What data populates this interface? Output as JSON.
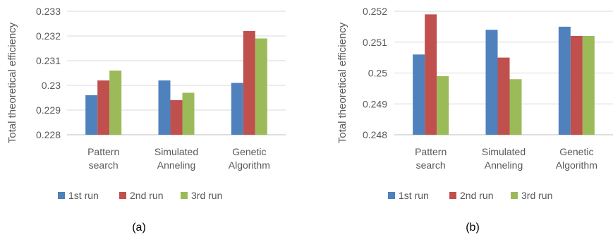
{
  "colors": {
    "series": [
      "#4f81bd",
      "#c0504d",
      "#9bbb59"
    ],
    "grid": "#d9d9d9",
    "axis": "#bfbfbf"
  },
  "chart_data": [
    {
      "type": "bar",
      "panel_label": "(a)",
      "ylabel": "Total theoretical efficiency",
      "categories": [
        [
          "Pattern",
          "search"
        ],
        [
          "Simulated",
          "Anneling"
        ],
        [
          "Genetic",
          "Algorithm"
        ]
      ],
      "ylim": [
        0.228,
        0.233
      ],
      "yticks": [
        "0.228",
        "0.229",
        "0.23",
        "0.231",
        "0.232",
        "0.233"
      ],
      "grid": true,
      "legend_position": "bottom",
      "series": [
        {
          "name": "1st run",
          "values": [
            0.2296,
            0.2302,
            0.2301
          ]
        },
        {
          "name": "2nd run",
          "values": [
            0.2302,
            0.2294,
            0.2322
          ]
        },
        {
          "name": "3rd run",
          "values": [
            0.2306,
            0.2297,
            0.2319
          ]
        }
      ]
    },
    {
      "type": "bar",
      "panel_label": "(b)",
      "ylabel": "Total theoretical efficiency",
      "categories": [
        [
          "Pattern",
          "search"
        ],
        [
          "Simulated",
          "Anneling"
        ],
        [
          "Genetic",
          "Algorithm"
        ]
      ],
      "ylim": [
        0.248,
        0.252
      ],
      "yticks": [
        "0.248",
        "0.249",
        "0.25",
        "0.251",
        "0.252"
      ],
      "grid": true,
      "legend_position": "bottom",
      "series": [
        {
          "name": "1st run",
          "values": [
            0.2506,
            0.2514,
            0.2515
          ]
        },
        {
          "name": "2nd run",
          "values": [
            0.2519,
            0.2505,
            0.2512
          ]
        },
        {
          "name": "3rd run",
          "values": [
            0.2499,
            0.2498,
            0.2512
          ]
        }
      ]
    }
  ]
}
